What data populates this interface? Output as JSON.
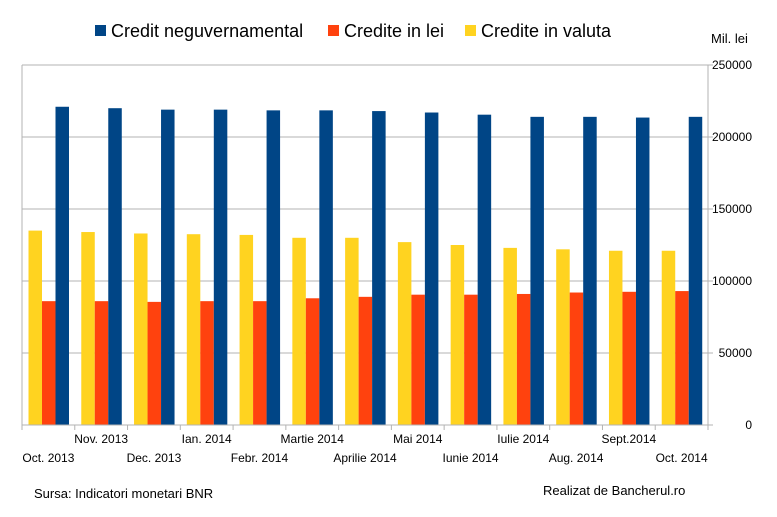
{
  "chart_data": {
    "type": "bar",
    "categories": [
      "Oct. 2013",
      "Nov. 2013",
      "Dec. 2013",
      "Ian. 2014",
      "Febr. 2014",
      "Martie 2014",
      "Aprilie 2014",
      "Mai 2014",
      "Iunie 2014",
      "Iulie 2014",
      "Aug. 2014",
      "Sept.2014",
      "Oct. 2014"
    ],
    "series": [
      {
        "name": "Credite in valuta",
        "color": "#ffd320",
        "values": [
          135000,
          134000,
          133000,
          132500,
          132000,
          130000,
          130000,
          127000,
          125000,
          123000,
          122000,
          121000,
          121000
        ]
      },
      {
        "name": "Credite in lei",
        "color": "#ff420e",
        "values": [
          86000,
          86000,
          85500,
          86000,
          86000,
          88000,
          89000,
          90500,
          90500,
          91000,
          92000,
          92500,
          93000
        ]
      },
      {
        "name": "Credit neguvernamental",
        "color": "#004586",
        "values": [
          221000,
          220000,
          219000,
          219000,
          218500,
          218500,
          218000,
          217000,
          215500,
          214000,
          214000,
          213500,
          214000
        ]
      }
    ],
    "legend": [
      "Credit neguvernamental",
      "Credite in lei",
      "Credite in valuta"
    ],
    "legend_position": "top",
    "y_unit_label": "Mil. lei",
    "y_axis_side": "right",
    "ylim": [
      0,
      250000
    ],
    "y_ticks": [
      0,
      50000,
      100000,
      150000,
      200000,
      250000
    ],
    "grid": true,
    "grid_color": "#b3b3b3"
  },
  "footer": {
    "source": "Sursa: Indicatori monetari BNR",
    "credit": "Realizat de Bancherul.ro"
  }
}
